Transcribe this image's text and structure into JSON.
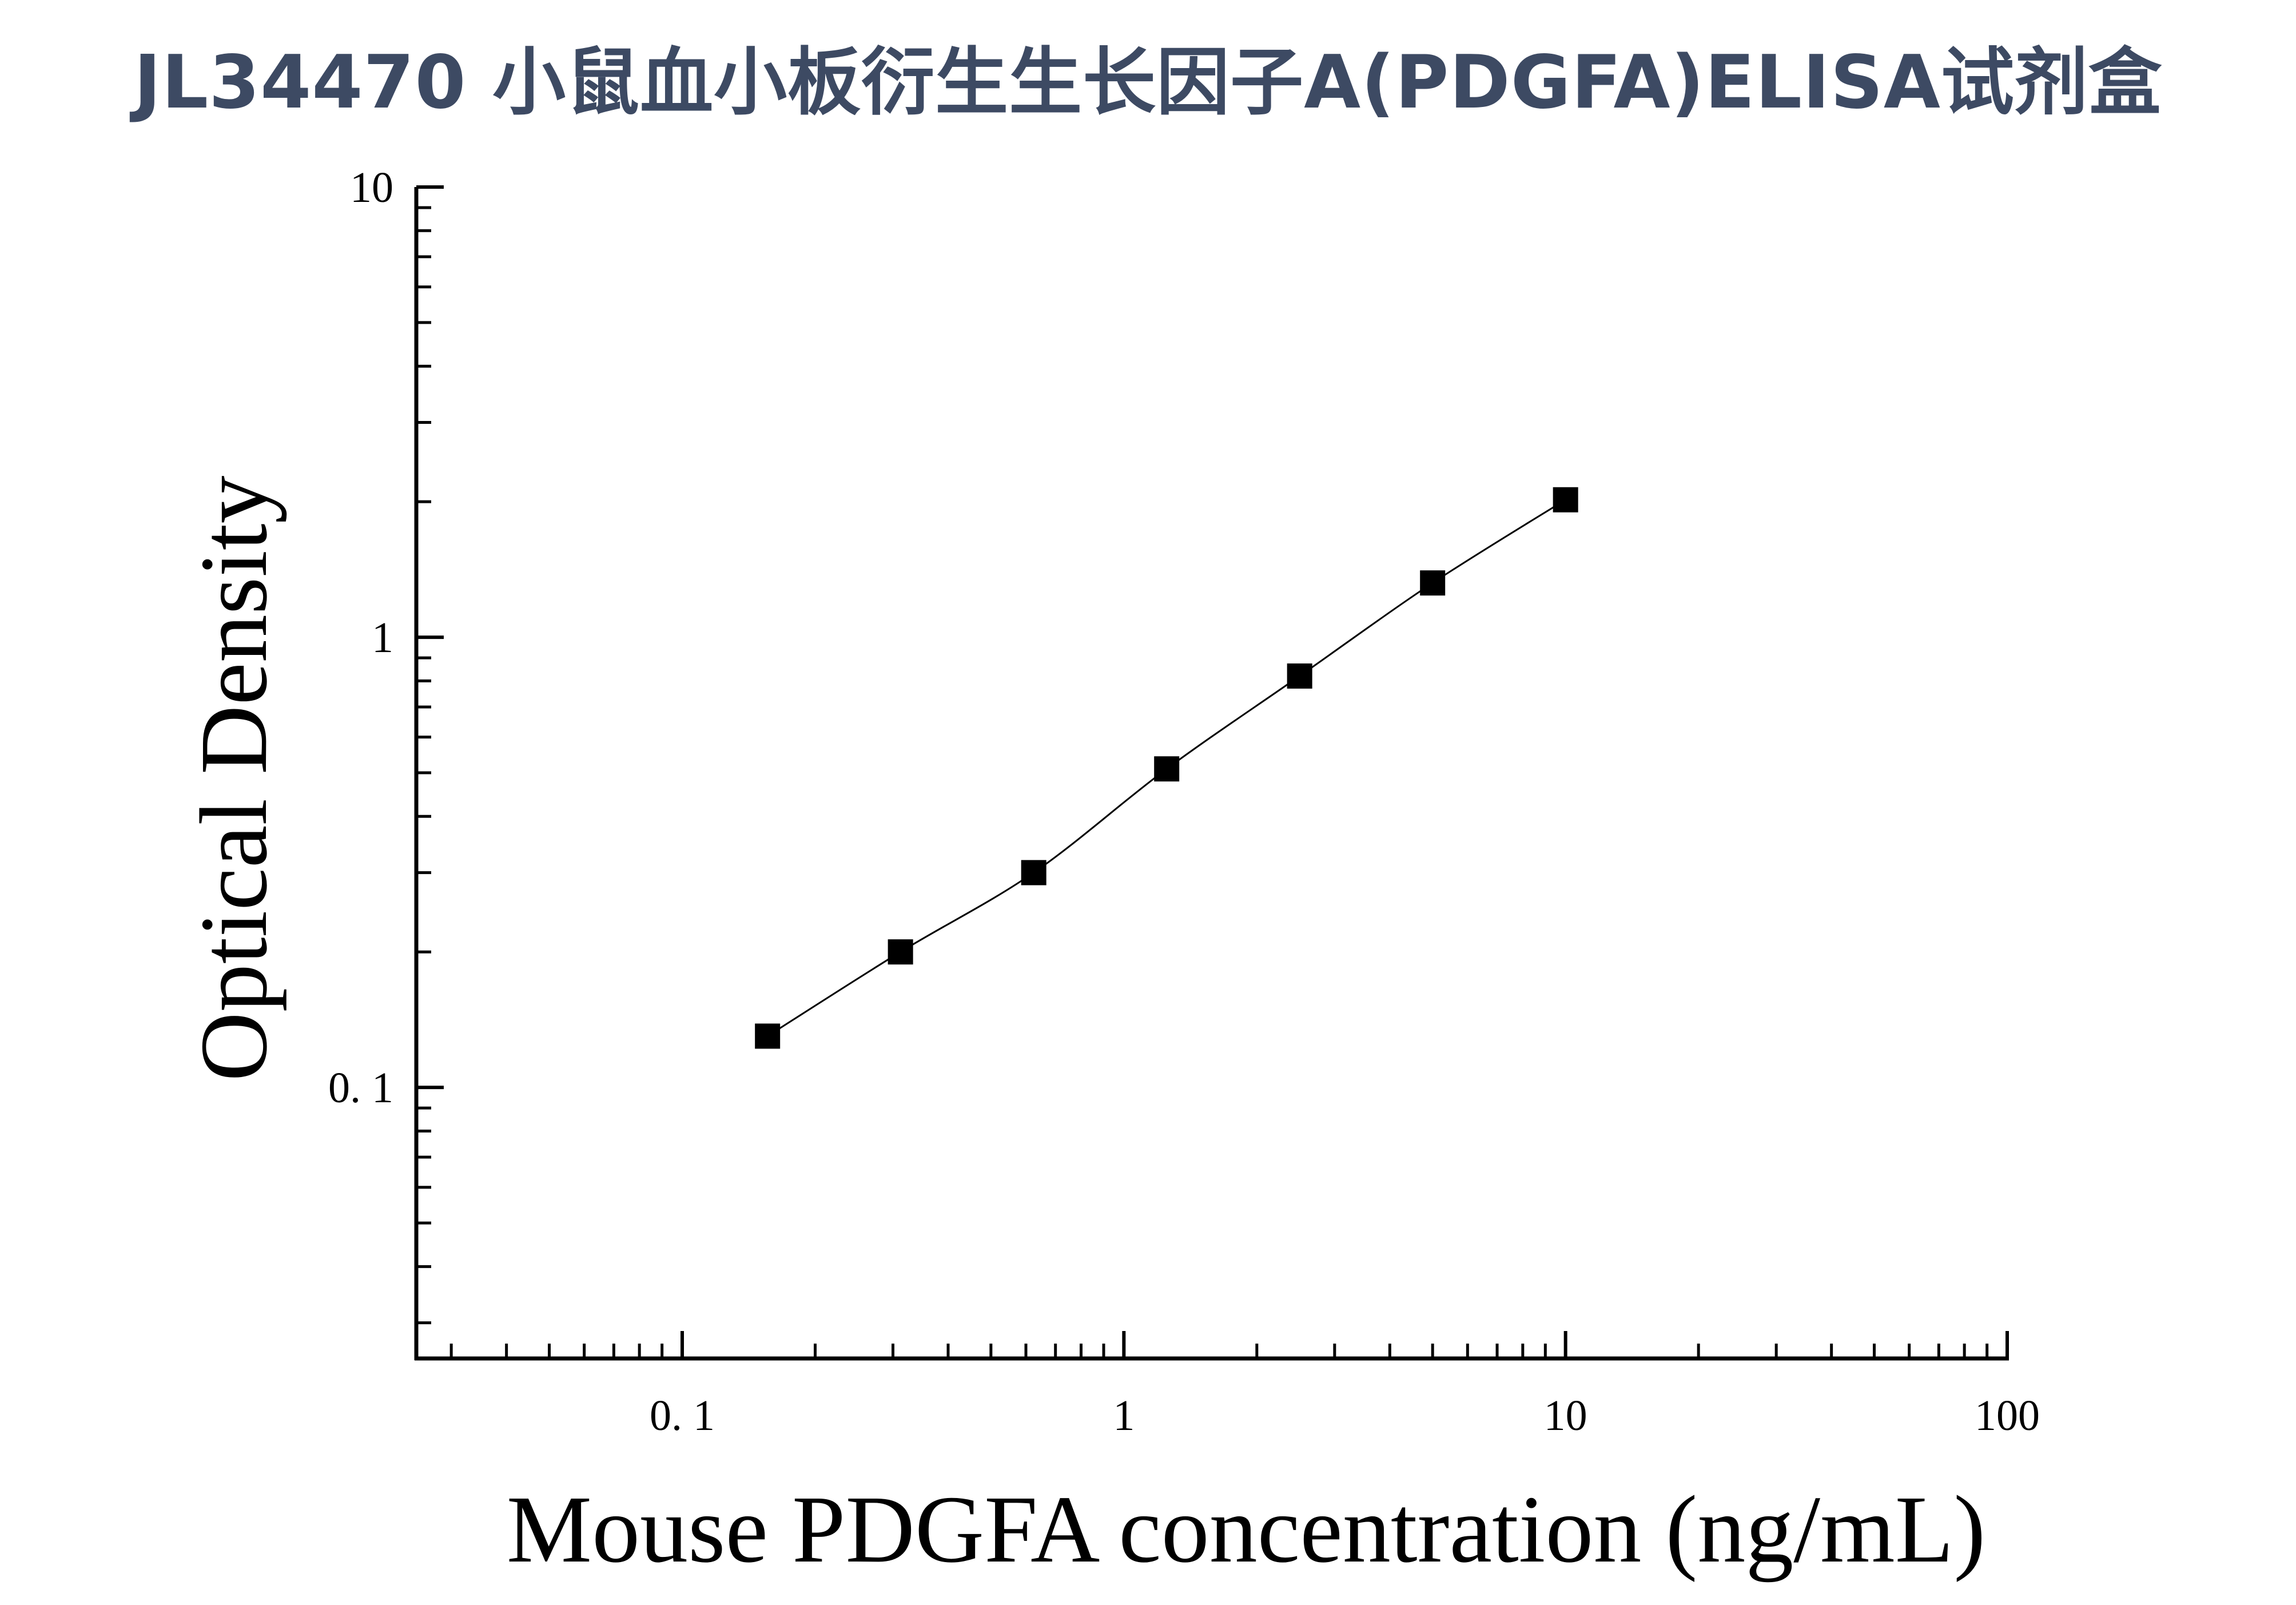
{
  "chart_data": {
    "type": "scatter",
    "title": "JL34470 小鼠血小板衍生生长因子A(PDGFA)ELISA试剂盒",
    "xlabel": "Mouse PDGFA concentration (ng/mL)",
    "ylabel": "Optical Density",
    "x_scale": "log",
    "y_scale": "log",
    "xlim": [
      0.025,
      100
    ],
    "ylim": [
      0.025,
      10
    ],
    "x_ticks": [
      {
        "value": 0.1,
        "label": "0. 1"
      },
      {
        "value": 1,
        "label": "1"
      },
      {
        "value": 10,
        "label": "10"
      },
      {
        "value": 100,
        "label": "100"
      }
    ],
    "y_ticks": [
      {
        "value": 0.1,
        "label": "0. 1"
      },
      {
        "value": 1,
        "label": "1"
      },
      {
        "value": 10,
        "label": "10"
      }
    ],
    "grid": false,
    "marker": "square",
    "color": "#000000",
    "fit_line": true,
    "series": [
      {
        "x": [
          0.156,
          0.312,
          0.625,
          1.25,
          2.5,
          5,
          10
        ],
        "y": [
          0.13,
          0.2,
          0.3,
          0.51,
          0.82,
          1.32,
          2.02
        ]
      }
    ]
  }
}
